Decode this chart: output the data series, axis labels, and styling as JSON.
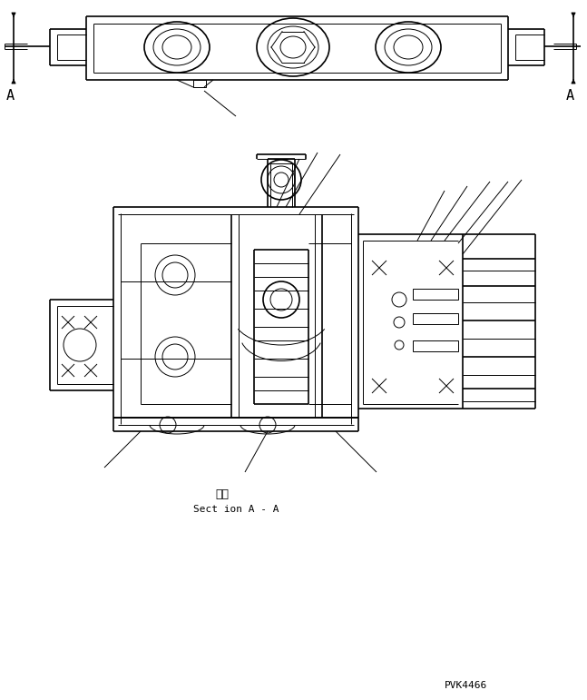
{
  "bg_color": "#ffffff",
  "line_color": "#000000",
  "lw": 0.7,
  "lw_thick": 1.2,
  "label_A_left": "A",
  "label_A_right": "A",
  "section_label_jp": "断面",
  "section_label_en": "Sect ion A - A",
  "part_number": "PVK4466",
  "figsize": [
    6.47,
    7.71
  ],
  "dpi": 100
}
